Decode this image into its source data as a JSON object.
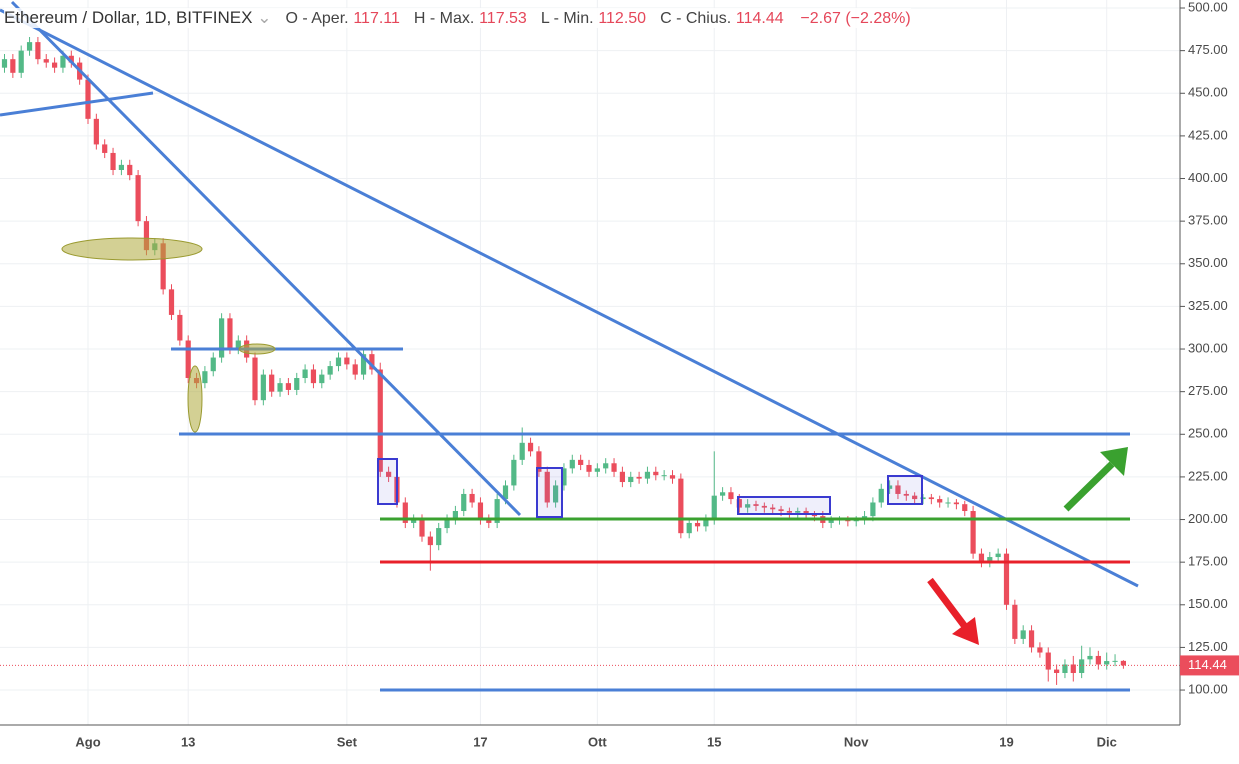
{
  "chart_data": {
    "type": "candlestick",
    "title": "Ethereum / Dollar, 1D, BITFINEX",
    "ohlc_legend": [
      {
        "label": "O - Aper.",
        "value": "117.11"
      },
      {
        "label": "H - Max.",
        "value": "117.53"
      },
      {
        "label": "L - Min.",
        "value": "112.50"
      },
      {
        "label": "C - Chius.",
        "value": "114.44"
      }
    ],
    "change": "−2.67 (−2.28%)",
    "up_color": "#53b987",
    "down_color": "#eb4d5c",
    "grid": true,
    "ylim": [
      79.5,
      504.7
    ],
    "yticks": [
      {
        "value": 100,
        "label": "100.00"
      },
      {
        "value": 125,
        "label": "125.00"
      },
      {
        "value": 150,
        "label": "150.00"
      },
      {
        "value": 175,
        "label": "175.00"
      },
      {
        "value": 200,
        "label": "200.00"
      },
      {
        "value": 225,
        "label": "225.00"
      },
      {
        "value": 250,
        "label": "250.00"
      },
      {
        "value": 275,
        "label": "275.00"
      },
      {
        "value": 300,
        "label": "300.00"
      },
      {
        "value": 325,
        "label": "325.00"
      },
      {
        "value": 350,
        "label": "350.00"
      },
      {
        "value": 375,
        "label": "375.00"
      },
      {
        "value": 400,
        "label": "400.00"
      },
      {
        "value": 425,
        "label": "425.00"
      },
      {
        "value": 450,
        "label": "450.00"
      },
      {
        "value": 475,
        "label": "475.00"
      },
      {
        "value": 500,
        "label": "500.00"
      }
    ],
    "categories": [
      null,
      null,
      null,
      null,
      null,
      null,
      null,
      null,
      null,
      null,
      "Ago",
      null,
      null,
      null,
      null,
      null,
      null,
      null,
      null,
      null,
      null,
      null,
      "13",
      null,
      null,
      null,
      null,
      null,
      null,
      null,
      null,
      null,
      null,
      null,
      null,
      null,
      null,
      null,
      null,
      null,
      null,
      "Set",
      null,
      null,
      null,
      null,
      null,
      null,
      null,
      null,
      null,
      null,
      null,
      null,
      null,
      null,
      null,
      "17",
      null,
      null,
      null,
      null,
      null,
      null,
      null,
      null,
      null,
      null,
      null,
      null,
      null,
      "Ott",
      null,
      null,
      null,
      null,
      null,
      null,
      null,
      null,
      null,
      null,
      null,
      null,
      null,
      "15",
      null,
      null,
      null,
      null,
      null,
      null,
      null,
      null,
      null,
      null,
      null,
      null,
      null,
      null,
      null,
      null,
      "Nov",
      null,
      null,
      null,
      null,
      null,
      null,
      null,
      null,
      null,
      null,
      null,
      null,
      null,
      null,
      null,
      null,
      null,
      "19",
      null,
      null,
      null,
      null,
      null,
      null,
      null,
      null,
      null,
      null,
      null,
      "Dic",
      null,
      null
    ],
    "open": [
      465,
      470,
      462,
      475,
      480,
      470,
      468,
      465,
      472,
      468,
      458,
      435,
      420,
      415,
      405,
      408,
      402,
      375,
      358,
      362,
      335,
      320,
      305,
      283,
      280,
      287,
      295,
      318,
      300,
      305,
      295,
      270,
      285,
      275,
      280,
      276,
      283,
      288,
      280,
      285,
      290,
      295,
      291,
      285,
      297,
      288,
      228,
      225,
      210,
      198,
      200,
      190,
      185,
      195,
      200,
      205,
      215,
      210,
      200,
      198,
      212,
      220,
      235,
      245,
      240,
      228,
      210,
      220,
      230,
      235,
      232,
      228,
      230,
      233,
      228,
      222,
      225,
      224,
      228,
      226,
      226,
      224,
      192,
      198,
      196,
      200,
      214,
      216,
      212,
      207,
      209,
      208,
      207,
      206,
      205,
      204,
      205,
      203,
      202,
      198,
      200,
      200,
      199,
      200,
      202,
      210,
      218,
      220,
      215,
      214,
      212,
      213,
      212,
      210,
      210,
      209,
      205,
      180,
      175,
      178,
      180,
      150,
      130,
      135,
      125,
      122,
      112,
      110,
      115,
      110,
      118,
      120,
      115,
      117,
      117.11
    ],
    "high": [
      473,
      473,
      478,
      483,
      483,
      473,
      471,
      475,
      475,
      471,
      461,
      438,
      423,
      418,
      411,
      411,
      405,
      378,
      365,
      365,
      338,
      323,
      308,
      286,
      290,
      298,
      321,
      321,
      308,
      308,
      298,
      288,
      288,
      283,
      283,
      286,
      291,
      291,
      288,
      293,
      298,
      298,
      294,
      300,
      300,
      292,
      231,
      228,
      213,
      203,
      203,
      193,
      198,
      203,
      208,
      218,
      218,
      213,
      203,
      215,
      223,
      238,
      254,
      248,
      243,
      231,
      223,
      233,
      238,
      238,
      235,
      233,
      236,
      236,
      231,
      228,
      228,
      231,
      231,
      229,
      229,
      227,
      201,
      201,
      203,
      240,
      219,
      219,
      215,
      212,
      211,
      210,
      209,
      208,
      207,
      207,
      207,
      205,
      205,
      202,
      202,
      202,
      202,
      205,
      213,
      221,
      223,
      223,
      217,
      216,
      215,
      215,
      214,
      213,
      212,
      211,
      208,
      183,
      181,
      183,
      183,
      153,
      138,
      138,
      128,
      125,
      115,
      118,
      120,
      126,
      125,
      123,
      122,
      121,
      117.53
    ],
    "low": [
      462,
      459,
      459,
      472,
      467,
      465,
      462,
      462,
      465,
      455,
      432,
      417,
      412,
      402,
      402,
      399,
      372,
      355,
      355,
      332,
      317,
      302,
      280,
      277,
      277,
      284,
      292,
      297,
      297,
      292,
      267,
      267,
      272,
      272,
      273,
      273,
      280,
      277,
      277,
      282,
      287,
      288,
      282,
      282,
      285,
      225,
      222,
      207,
      195,
      195,
      187,
      170,
      182,
      192,
      197,
      202,
      207,
      197,
      195,
      195,
      209,
      217,
      232,
      237,
      225,
      207,
      207,
      217,
      227,
      229,
      225,
      225,
      227,
      225,
      219,
      219,
      221,
      221,
      223,
      223,
      221,
      189,
      189,
      193,
      193,
      197,
      211,
      209,
      204,
      204,
      205,
      204,
      203,
      202,
      201,
      201,
      200,
      199,
      195,
      195,
      197,
      196,
      196,
      197,
      199,
      207,
      215,
      212,
      211,
      209,
      209,
      209,
      207,
      207,
      206,
      202,
      177,
      172,
      172,
      175,
      147,
      127,
      127,
      122,
      119,
      105,
      103,
      107,
      105,
      107,
      115,
      112,
      112,
      114,
      112.5
    ],
    "close": [
      470,
      462,
      475,
      480,
      470,
      468,
      465,
      472,
      468,
      458,
      435,
      420,
      415,
      405,
      408,
      402,
      375,
      358,
      362,
      335,
      320,
      305,
      283,
      280,
      287,
      295,
      318,
      300,
      305,
      295,
      270,
      285,
      275,
      280,
      276,
      283,
      288,
      280,
      285,
      290,
      295,
      291,
      285,
      297,
      288,
      228,
      225,
      210,
      198,
      200,
      190,
      185,
      195,
      200,
      205,
      215,
      210,
      200,
      198,
      212,
      220,
      235,
      245,
      240,
      228,
      210,
      220,
      230,
      235,
      232,
      228,
      230,
      233,
      228,
      222,
      225,
      224,
      228,
      226,
      226,
      224,
      192,
      198,
      196,
      200,
      214,
      216,
      212,
      207,
      209,
      208,
      207,
      206,
      205,
      204,
      205,
      203,
      202,
      198,
      200,
      200,
      199,
      200,
      202,
      210,
      218,
      220,
      215,
      214,
      212,
      213,
      212,
      210,
      210,
      209,
      205,
      180,
      175,
      178,
      180,
      150,
      130,
      135,
      125,
      122,
      112,
      110,
      115,
      110,
      118,
      120,
      115,
      117,
      117.11,
      114.44
    ]
  }
}
